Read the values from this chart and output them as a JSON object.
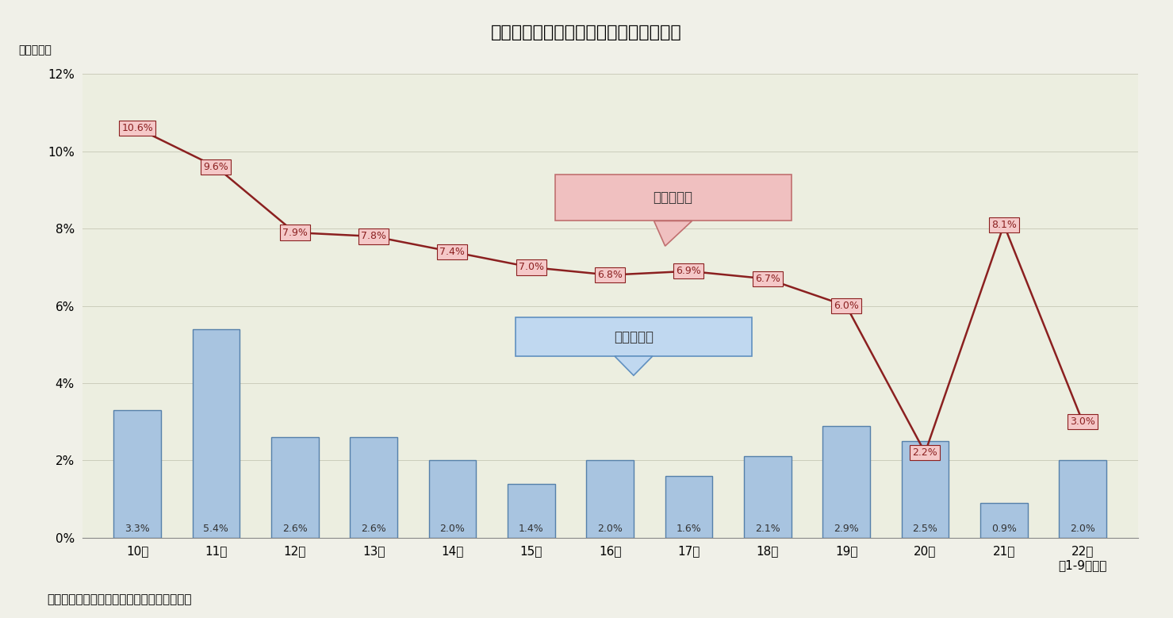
{
  "title": "図表１：中国の経済成長率と消費者物価",
  "ylabel": "（前年比）",
  "footnote": "（中国国家統計局のデータを元に筆者作成）",
  "x_labels": [
    "10年",
    "11年",
    "12年",
    "13年",
    "14年",
    "15年",
    "16年",
    "17年",
    "18年",
    "19年",
    "20年",
    "21年",
    "22年\n（1-9月期）"
  ],
  "bar_values": [
    3.3,
    5.4,
    2.6,
    2.6,
    2.0,
    1.4,
    2.0,
    1.6,
    2.1,
    2.9,
    2.5,
    0.9,
    2.0
  ],
  "bar_labels": [
    "3.3%",
    "5.4%",
    "2.6%",
    "2.6%",
    "2.0%",
    "1.4%",
    "2.0%",
    "1.6%",
    "2.1%",
    "2.9%",
    "2.5%",
    "0.9%",
    "2.0%"
  ],
  "line_values": [
    10.6,
    9.6,
    7.9,
    7.8,
    7.4,
    7.0,
    6.8,
    6.9,
    6.7,
    6.0,
    2.2,
    8.1,
    3.0
  ],
  "line_labels": [
    "10.6%",
    "9.6%",
    "7.9%",
    "7.8%",
    "7.4%",
    "7.0%",
    "6.8%",
    "6.9%",
    "6.7%",
    "6.0%",
    "2.2%",
    "8.1%",
    "3.0%"
  ],
  "bar_color": "#a8c4e0",
  "bar_edge_color": "#5580aa",
  "line_color": "#8b2020",
  "fig_bg_color": "#f0f0e8",
  "plot_bg_color": "#eceee0",
  "ylim": [
    0,
    12
  ],
  "yticks": [
    0,
    2,
    4,
    6,
    8,
    10,
    12
  ],
  "ytick_labels": [
    "0%",
    "2%",
    "4%",
    "6%",
    "8%",
    "10%",
    "12%"
  ],
  "legend_line_text": "実質成長率",
  "legend_bar_text": "消費者物価",
  "legend_line_facecolor": "#f0c0c0",
  "legend_line_edgecolor": "#c07070",
  "legend_bar_facecolor": "#c0d8f0",
  "legend_bar_edgecolor": "#6090c0",
  "title_fontsize": 16,
  "label_fontsize": 9,
  "tick_fontsize": 11,
  "annot_fontsize": 9
}
